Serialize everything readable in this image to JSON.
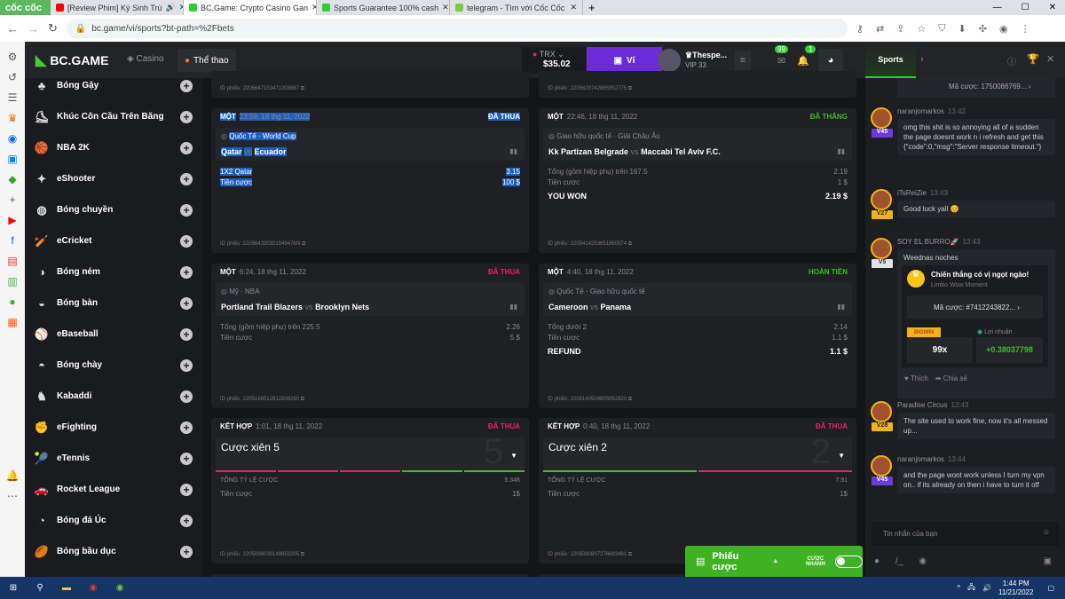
{
  "browser": {
    "brand": "cốc cốc",
    "tabs": [
      {
        "title": "[Review Phim] Ký Sinh Trù",
        "active": false
      },
      {
        "title": "BC.Game: Crypto Casino Gan",
        "active": true
      },
      {
        "title": "Sports Guarantee 100% cash",
        "active": false
      },
      {
        "title": "telegram - Tìm với Cốc Cốc",
        "active": false
      }
    ],
    "url": "bc.game/vi/sports?bt-path=%2Fbets"
  },
  "header": {
    "logo": "BC.GAME",
    "nav": [
      {
        "label": "Casino"
      },
      {
        "label": "Thể thao"
      }
    ],
    "currency": "TRX",
    "balance": "$35.02",
    "wallet_label": "Ví",
    "username": "Thespe...",
    "vip": "VIP 33",
    "mail_count": "99",
    "notif_count": "1"
  },
  "sports_nav": [
    "Bóng Gậy",
    "Khúc Côn Cầu Trên Băng",
    "NBA 2K",
    "eShooter",
    "Bóng chuyền",
    "eCricket",
    "Bóng ném",
    "Bóng bàn",
    "eBaseball",
    "Bóng chày",
    "Kabaddi",
    "eFighting",
    "eTennis",
    "Rocket League",
    "Bóng đá Úc",
    "Bóng bầu dục"
  ],
  "top_ids": [
    "2205647153471303687",
    "2205620742865952775"
  ],
  "bets": [
    {
      "type": "MỘT",
      "date": "23:59, 18 thg 11, 2022",
      "status": "ĐÃ THUA",
      "status_color": "#e8265e",
      "league": "Quốc Tế · World Cup",
      "home": "Qatar",
      "vs": "vs",
      "away": "Ecuador",
      "rows": [
        [
          "1X2 Qatar",
          "3.15"
        ],
        [
          "Tiền cược",
          "100 $"
        ]
      ],
      "id": "ID phiếu: 2205643303215494760l",
      "selected": true
    },
    {
      "type": "MỘT",
      "date": "22:46, 18 thg 11, 2022",
      "status": "ĐÃ THẮNG",
      "status_color": "#3ebd2d",
      "league": "Giao hữu quốc tế · Giải Châu Âu",
      "home": "Kk Partizan Belgrade",
      "vs": "vs",
      "away": "Maccabi Tel Aviv F.C.",
      "rows": [
        [
          "Tổng (gồm hiệp phụ) trên 167.5",
          "2.19"
        ],
        [
          "Tiền cược",
          "1 $"
        ]
      ],
      "result": [
        "YOU WON",
        "2.19 $"
      ],
      "id": "ID phiếu: 2205414253651860574"
    },
    {
      "type": "MỘT",
      "date": "6:24, 18 thg 11, 2022",
      "status": "ĐÃ THUA",
      "status_color": "#e8265e",
      "league": "Mỹ · NBA",
      "home": "Portland Trail Blazers",
      "vs": "vs",
      "away": "Brooklyn Nets",
      "rows": [
        [
          "Tổng (gồm hiệp phụ) trên 225.5",
          "2.26"
        ],
        [
          "Tiền cược",
          "5 $"
        ]
      ],
      "id": "ID phiếu: 2205166512812208290"
    },
    {
      "type": "MỘT",
      "date": "4:40, 18 thg 11, 2022",
      "status": "HOÀN TIỀN",
      "status_color": "#3ebd2d",
      "league": "Quốc Tế · Giao hữu quốc tế",
      "home": "Cameroon",
      "vs": "vs",
      "away": "Panama",
      "rows": [
        [
          "Tổng dưới 2",
          "2.14"
        ],
        [
          "Tiền cược",
          "1.1 $"
        ]
      ],
      "result": [
        "REFUND",
        "1.1 $"
      ],
      "id": "ID phiếu: 2205140504805062920"
    }
  ],
  "parlays": [
    {
      "type": "KẾT HỢP",
      "date": "1:01, 18 thg 11, 2022",
      "status": "ĐÃ THUA",
      "title": "Cược xiên 5",
      "count": "5",
      "legs": [
        "lost",
        "lost",
        "lost",
        "won",
        "won"
      ],
      "rows": [
        [
          "TỔNG TỶ LỆ CƯỢC",
          "5.346"
        ],
        [
          "Tiền cược",
          "1$"
        ]
      ],
      "id": "ID phiếu: 2205086030149853205"
    },
    {
      "type": "KẾT HỢP",
      "date": "0:40, 18 thg 11, 2022",
      "status": "ĐÃ THUA",
      "title": "Cược xiên 2",
      "count": "2",
      "legs": [
        "won",
        "lost"
      ],
      "rows": [
        [
          "TỔNG TỶ LỆ CƯỢC",
          "7.91"
        ],
        [
          "Tiền cược",
          "1$"
        ]
      ],
      "id": "ID phiếu: 2205080807276683491"
    }
  ],
  "betslip": {
    "label": "Phiếu cược",
    "quick_label": "CƯỢC NHANH"
  },
  "chat": {
    "tab": "Sports",
    "top_code": "Mã cược: 1750086769...",
    "messages": [
      {
        "user": "naranjomarkos",
        "time": "13:42",
        "vip": "V45",
        "text": "omg this shit is so annoying all of a sudden the page doesnt work n i refresh and get this {\"code\":0,\"msg\":\"Server response timeout.\"}"
      },
      {
        "user": "iTsReiZie",
        "time": "13:43",
        "vip": "V27",
        "text": "Good luck yall 😊"
      },
      {
        "user": "SOY EL BURRO🚀",
        "time": "13:43",
        "vip": "V5",
        "text": "Weednas noches"
      },
      {
        "user": "Paradise Circus",
        "time": "13:43",
        "vip": "V28",
        "text": "The site used to work fine, now it's all messed up..."
      },
      {
        "user": "naranjomarkos",
        "time": "13:44",
        "vip": "V45",
        "text": "and the page wont work unless I turn my vpn on.. if its already on then i have to turn it off"
      }
    ],
    "share_card": {
      "title": "Chiến thắng có vị ngọt ngào!",
      "subtitle": "Limbo Wow Moment",
      "code": "Mã cược: #7412243822...",
      "badge": "BIGWIN",
      "profit_label": "Lợi nhuận",
      "multiplier": "99x",
      "profit": "+0.38037798",
      "like": "Thích",
      "share": "Chia sẻ"
    },
    "input_placeholder": "Tin nhắn của bạn"
  },
  "taskbar": {
    "time": "1:44 PM",
    "date": "11/21/2022"
  }
}
